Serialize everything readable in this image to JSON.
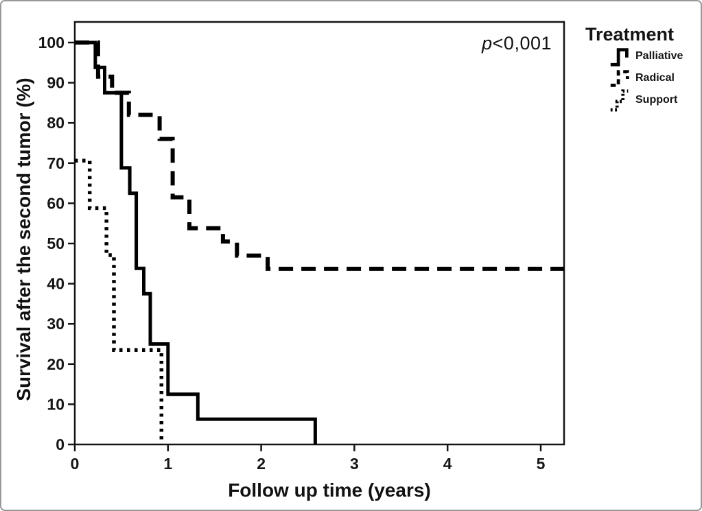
{
  "figure": {
    "background": "#ffffff",
    "border_color": "#98989b"
  },
  "chart_data": {
    "type": "line",
    "subtype": "kaplan-meier-step",
    "title": "",
    "xlabel": "Follow up time (years)",
    "ylabel": "Survival after the second tumor (%)",
    "x_ticks": [
      0,
      1,
      2,
      3,
      4,
      5
    ],
    "y_ticks": [
      0,
      10,
      20,
      30,
      40,
      50,
      60,
      70,
      80,
      90,
      100
    ],
    "xlim": [
      0,
      5.25
    ],
    "ylim": [
      0,
      105
    ],
    "grid": false,
    "legend": {
      "title": "Treatment",
      "position": "outside-top-right"
    },
    "annotation": {
      "text": "p<0,001",
      "p_symbol": "p",
      "p_rest": "<0,001"
    },
    "line_color": "#000000",
    "series": [
      {
        "name": "Palliative",
        "style": "solid",
        "points": [
          [
            0,
            100
          ],
          [
            0.22,
            93.8
          ],
          [
            0.32,
            87.5
          ],
          [
            0.5,
            68.8
          ],
          [
            0.59,
            62.5
          ],
          [
            0.66,
            43.8
          ],
          [
            0.74,
            37.5
          ],
          [
            0.81,
            25
          ],
          [
            1.0,
            12.5
          ],
          [
            1.32,
            6.3
          ],
          [
            2.58,
            0
          ]
        ]
      },
      {
        "name": "Radical",
        "style": "dashed",
        "points": [
          [
            0,
            100
          ],
          [
            0.25,
            91.5
          ],
          [
            0.4,
            87.5
          ],
          [
            0.58,
            82
          ],
          [
            0.91,
            76
          ],
          [
            1.05,
            61.5
          ],
          [
            1.23,
            53.8
          ],
          [
            1.59,
            50.5
          ],
          [
            1.74,
            47
          ],
          [
            2.07,
            43.7
          ],
          [
            5.25,
            43.7
          ]
        ]
      },
      {
        "name": "Support",
        "style": "dotted",
        "points": [
          [
            0,
            70.6
          ],
          [
            0.16,
            58.8
          ],
          [
            0.34,
            47.1
          ],
          [
            0.42,
            23.5
          ],
          [
            0.93,
            0
          ]
        ]
      }
    ]
  }
}
